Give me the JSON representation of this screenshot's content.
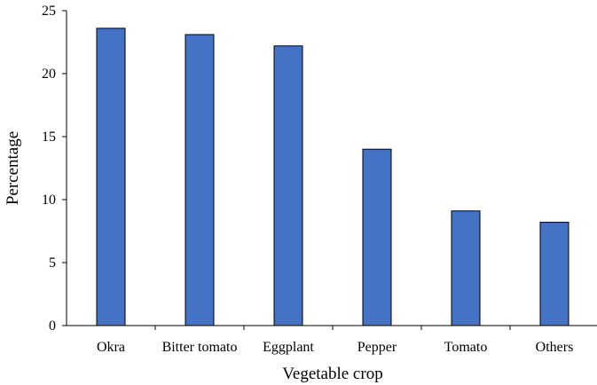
{
  "chart_data": {
    "type": "bar",
    "xlabel": "Vegetable crop",
    "ylabel": "Percentage",
    "ylim": [
      0,
      25
    ],
    "yticks": [
      "0",
      "5",
      "10",
      "15",
      "20",
      "25"
    ],
    "categories": [
      "Okra",
      "Bitter tomato",
      "Eggplant",
      "Pepper",
      "Tomato",
      "Others"
    ],
    "values": [
      23.6,
      23.1,
      22.2,
      14.0,
      9.1,
      8.2
    ],
    "grid": false,
    "legend": "none",
    "colors": {
      "bar_fill": "#4472C4",
      "bar_stroke": "#000000",
      "axis": "#000000"
    }
  }
}
